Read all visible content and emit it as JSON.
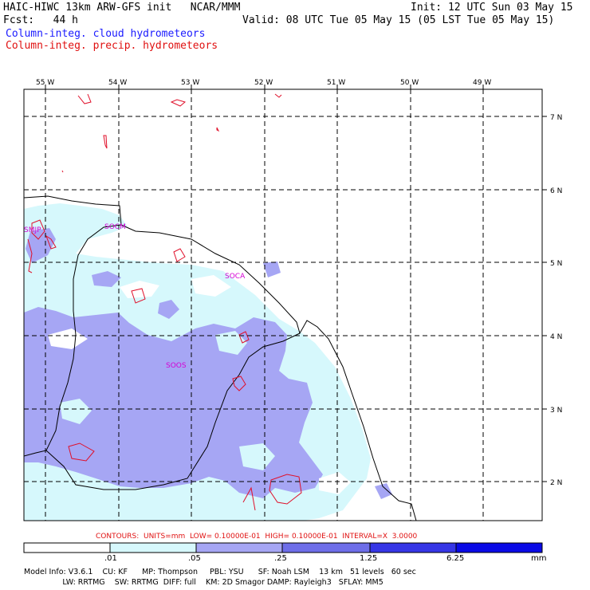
{
  "header": {
    "title": "HAIC-HIWC 13km ARW-GFS init   NCAR/MMM",
    "init": "Init: 12 UTC Sun 03 May 15",
    "fcst": "Fcst:   44 h",
    "valid": "Valid: 08 UTC Tue 05 May 15 (05 LST Tue 05 May 15)",
    "field_cloud": "Column-integ. cloud hydrometeors",
    "field_precip": "Column-integ. precip. hydrometeors"
  },
  "colors": {
    "cloud_title": "#1a1aff",
    "precip_title": "#e01010",
    "contour": "#e0102a",
    "station": "#d400d4",
    "band1": "#d6f8fc",
    "band2": "#a6a6f4",
    "band3": "#6e6ee8",
    "band4": "#3636e6",
    "band5": "#0a0ae6"
  },
  "map": {
    "lon_labels": [
      "55 W",
      "54 W",
      "53 W",
      "52 W",
      "51 W",
      "50 W",
      "49 W"
    ],
    "lat_labels": [
      "7 N",
      "6 N",
      "5 N",
      "4 N",
      "3 N",
      "2 N"
    ],
    "stations": [
      "SMJP",
      "SOCM",
      "SOCA",
      "SOOS"
    ]
  },
  "contours_line": "CONTOURS:  UNITS=mm  LOW= 0.10000E-01  HIGH= 0.10000E-01  INTERVAL=X  3.0000",
  "colorbar": {
    "ticks": [
      ".01",
      ".05",
      ".25",
      "1.25",
      "6.25"
    ],
    "unit": "mm"
  },
  "model_info": {
    "line1": "Model Info: V3.6.1    CU: KF      MP: Thompson     PBL: YSU      SF: Noah LSM    13 km   51 levels   60 sec",
    "line2": "                LW: RRTMG    SW: RRTMG  DIFF: full    KM: 2D Smagor DAMP: Rayleigh3   SFLAY: MM5"
  }
}
